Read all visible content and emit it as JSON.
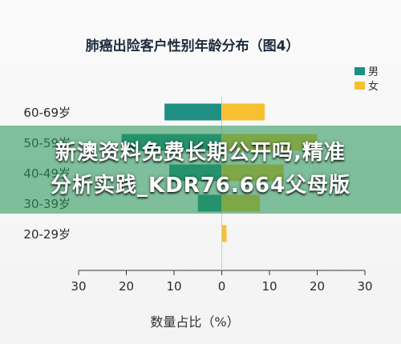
{
  "chart_data": {
    "type": "bar",
    "orientation": "horizontal",
    "title": "肺癌出险客户性别年龄分布（图4）",
    "xlabel": "数量占比（%）",
    "ylabel": "",
    "categories": [
      "60-69岁",
      "50-59岁",
      "40-49岁",
      "30-39岁",
      "20-29岁"
    ],
    "series": [
      {
        "name": "男",
        "color": "#1f8f83",
        "values": [
          12,
          21,
          11,
          5,
          0
        ]
      },
      {
        "name": "女",
        "color": "#f5c131",
        "values": [
          9,
          20,
          13,
          8,
          1
        ]
      }
    ],
    "xlim": [
      -30,
      30
    ],
    "xticks": [
      30,
      20,
      10,
      0,
      10,
      20,
      30
    ],
    "grid": false,
    "legend_position": "top-right"
  },
  "overlay": {
    "line1": "新澳资料免费长期公开吗,精准",
    "line2": "分析实践_KDR76.664父母版",
    "color": "#2d965a"
  }
}
